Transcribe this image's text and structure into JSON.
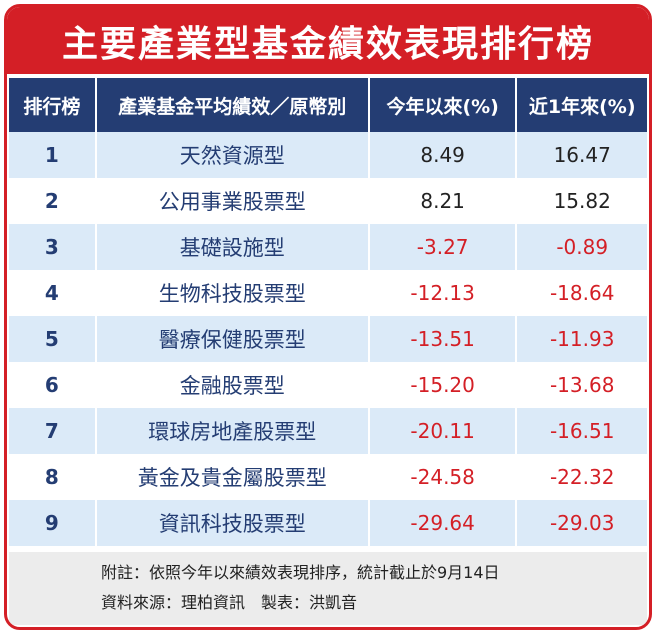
{
  "title": "主要產業型基金績效表現排行榜",
  "colors": {
    "accent": "#d41f26",
    "header_bg": "#243d73",
    "stripe": "#dbeaf8"
  },
  "table": {
    "headers": [
      "排行榜",
      "產業基金平均績效／原幣別",
      "今年以來(%)",
      "近1年來(%)"
    ],
    "rows": [
      {
        "rank": "1",
        "name": "天然資源型",
        "ytd": "8.49",
        "y1": "16.47"
      },
      {
        "rank": "2",
        "name": "公用事業股票型",
        "ytd": "8.21",
        "y1": "15.82"
      },
      {
        "rank": "3",
        "name": "基礎設施型",
        "ytd": "-3.27",
        "y1": "-0.89"
      },
      {
        "rank": "4",
        "name": "生物科技股票型",
        "ytd": "-12.13",
        "y1": "-18.64"
      },
      {
        "rank": "5",
        "name": "醫療保健股票型",
        "ytd": "-13.51",
        "y1": "-11.93"
      },
      {
        "rank": "6",
        "name": "金融股票型",
        "ytd": "-15.20",
        "y1": "-13.68"
      },
      {
        "rank": "7",
        "name": "環球房地產股票型",
        "ytd": "-20.11",
        "y1": "-16.51"
      },
      {
        "rank": "8",
        "name": "黃金及貴金屬股票型",
        "ytd": "-24.58",
        "y1": "-22.32"
      },
      {
        "rank": "9",
        "name": "資訊科技股票型",
        "ytd": "-29.64",
        "y1": "-29.03"
      }
    ]
  },
  "footer": {
    "note": "附註：依照今年以來績效表現排序，統計截止於9月14日",
    "source": "資料來源：理柏資訊　製表：洪凱音"
  }
}
